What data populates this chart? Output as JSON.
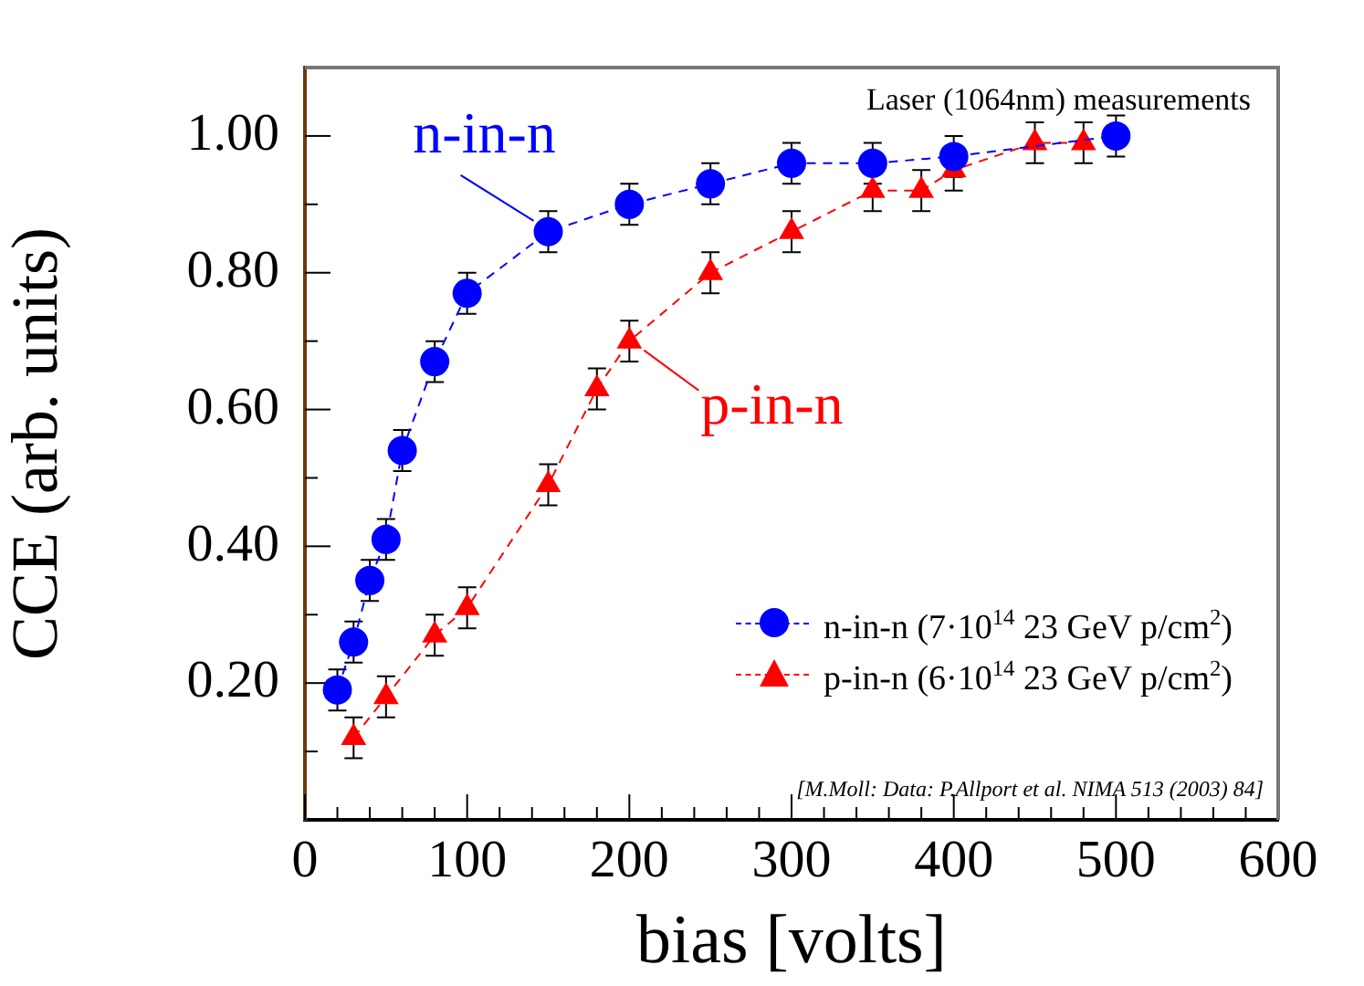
{
  "chart_data": {
    "type": "line",
    "xlabel": "bias [volts]",
    "ylabel": "CCE (arb. units)",
    "annotations": [
      "Laser (1064nm) measurements",
      {
        "text": "n-in-n",
        "x": 150,
        "y": 0.86
      },
      {
        "text": "p-in-n",
        "x": 200,
        "y": 0.7
      },
      "[M.Moll: Data: P.Allport et al. NIMA 513 (2003) 84]"
    ],
    "series": [
      {
        "name": "n-in-n (7·10$^{14}$ 23 GeV p/cm$^{2}$)",
        "color": "#0000ff",
        "marker": "circle",
        "line_style": "dashed",
        "x": [
          20,
          30,
          40,
          50,
          60,
          80,
          100,
          150,
          200,
          250,
          300,
          350,
          400,
          500
        ],
        "values": [
          0.19,
          0.26,
          0.35,
          0.41,
          0.54,
          0.67,
          0.77,
          0.86,
          0.9,
          0.93,
          0.96,
          0.96,
          0.97,
          1.0
        ],
        "errors": [
          0.03,
          0.03,
          0.03,
          0.03,
          0.03,
          0.03,
          0.03,
          0.03,
          0.03,
          0.03,
          0.03,
          0.03,
          0.03,
          0.03
        ]
      },
      {
        "name": "p-in-n (6·10$^{14}$ 23 GeV p/cm$^{2}$)",
        "color": "#ff0000",
        "marker": "triangle",
        "line_style": "dashed",
        "x": [
          30,
          50,
          80,
          100,
          150,
          180,
          200,
          250,
          300,
          350,
          380,
          400,
          450,
          480
        ],
        "values": [
          0.12,
          0.18,
          0.27,
          0.31,
          0.49,
          0.63,
          0.7,
          0.8,
          0.86,
          0.92,
          0.92,
          0.95,
          0.99,
          0.99
        ],
        "errors": [
          0.03,
          0.03,
          0.03,
          0.03,
          0.03,
          0.03,
          0.03,
          0.03,
          0.03,
          0.03,
          0.03,
          0.03,
          0.03,
          0.03
        ]
      }
    ],
    "xlim": [
      0,
      600
    ],
    "xticks": [
      0,
      {
        "value": 20,
        "label": null
      },
      {
        "value": 40,
        "label": null
      },
      {
        "value": 60,
        "label": null
      },
      {
        "value": 80,
        "label": null
      },
      100,
      {
        "value": 120,
        "label": null
      },
      {
        "value": 140,
        "label": null
      },
      {
        "value": 160,
        "label": null
      },
      {
        "value": 180,
        "label": null
      },
      200,
      {
        "value": 220,
        "label": null
      },
      {
        "value": 240,
        "label": null
      },
      {
        "value": 260,
        "label": null
      },
      {
        "value": 280,
        "label": null
      },
      300,
      {
        "value": 320,
        "label": null
      },
      {
        "value": 340,
        "label": null
      },
      {
        "value": 360,
        "label": null
      },
      {
        "value": 380,
        "label": null
      },
      400,
      {
        "value": 420,
        "label": null
      },
      {
        "value": 440,
        "label": null
      },
      {
        "value": 460,
        "label": null
      },
      {
        "value": 480,
        "label": null
      },
      500,
      {
        "value": 520,
        "label": null
      },
      {
        "value": 540,
        "label": null
      },
      {
        "value": 560,
        "label": null
      },
      {
        "value": 580,
        "label": null
      },
      600
    ],
    "ylim": [
      0,
      1.1
    ],
    "yticks": [
      {
        "value": 0.1,
        "label": null
      },
      {
        "value": 0.2,
        "label": "0.20"
      },
      {
        "value": 0.3,
        "label": null
      },
      {
        "value": 0.4,
        "label": "0.40"
      },
      {
        "value": 0.5,
        "label": null
      },
      {
        "value": 0.6,
        "label": "0.60"
      },
      {
        "value": 0.7,
        "label": null
      },
      {
        "value": 0.8,
        "label": "0.80"
      },
      {
        "value": 0.9,
        "label": null
      },
      {
        "value": 1.0,
        "label": "1.00"
      }
    ],
    "grid": false,
    "legend": "bottom right"
  }
}
